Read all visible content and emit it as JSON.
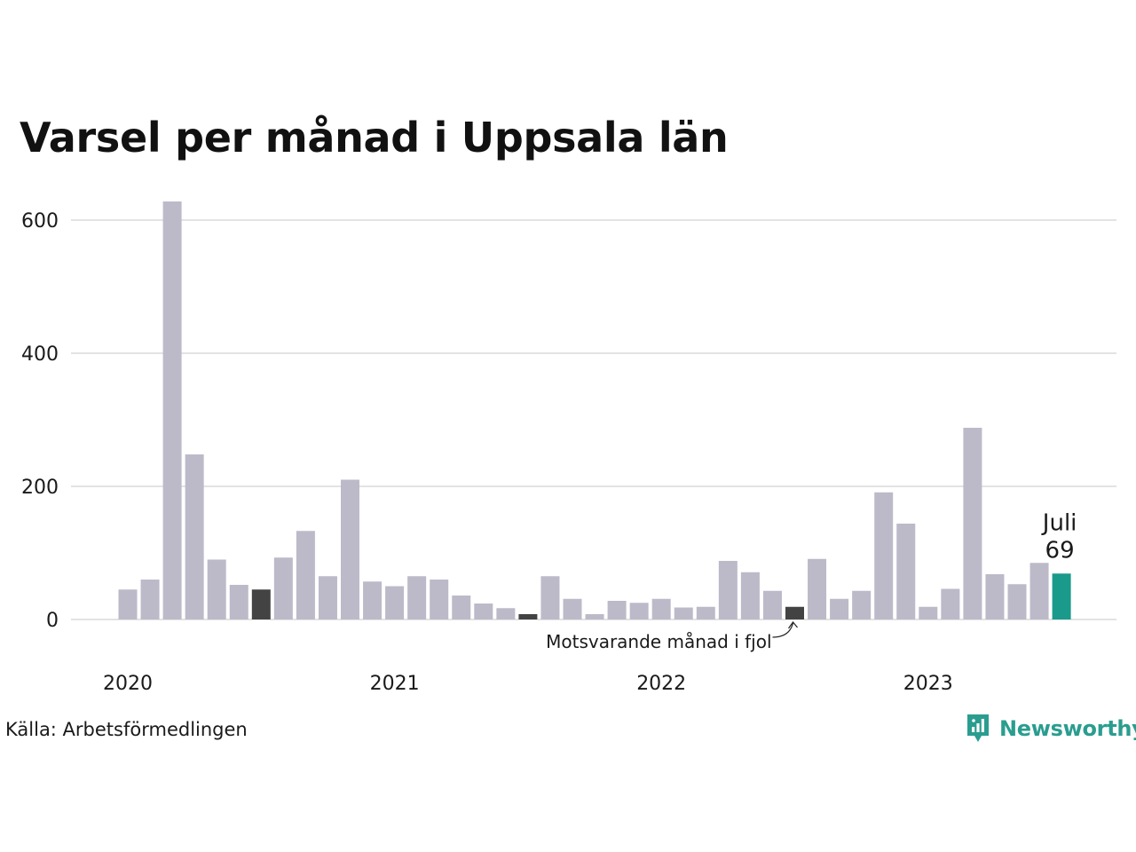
{
  "colors": {
    "bar": "#bcbac9",
    "same_month_last_year": "#434343",
    "current": "#1a9a8b",
    "grid": "#e3e3e3",
    "brand": "#2a9d8f"
  },
  "source": "Källa: Arbetsförmedlingen",
  "brand": {
    "name": "Newsworthy",
    "icon": "bar-chart-speech-bubble-icon"
  },
  "chart_data": {
    "type": "bar",
    "title": "Varsel per månad i Uppsala län",
    "xlabel": "",
    "ylabel": "",
    "ylim": [
      0,
      640
    ],
    "yticks": [
      0,
      200,
      400,
      600
    ],
    "ytick_labels": [
      "0",
      "200",
      "400",
      "600"
    ],
    "x_range": [
      "2020-01",
      "2023-07"
    ],
    "year_labels": [
      {
        "label": "2020",
        "month": "2020-01"
      },
      {
        "label": "2021",
        "month": "2021-01"
      },
      {
        "label": "2022",
        "month": "2022-01"
      },
      {
        "label": "2023",
        "month": "2023-01"
      }
    ],
    "grid": true,
    "months": [
      "2020-01",
      "2020-02",
      "2020-03",
      "2020-04",
      "2020-05",
      "2020-06",
      "2020-07",
      "2020-08",
      "2020-09",
      "2020-10",
      "2020-11",
      "2020-12",
      "2021-01",
      "2021-02",
      "2021-03",
      "2021-04",
      "2021-05",
      "2021-06",
      "2021-07",
      "2021-08",
      "2021-09",
      "2021-10",
      "2021-11",
      "2021-12",
      "2022-01",
      "2022-02",
      "2022-03",
      "2022-04",
      "2022-05",
      "2022-06",
      "2022-07",
      "2022-08",
      "2022-09",
      "2022-10",
      "2022-11",
      "2022-12",
      "2023-01",
      "2023-02",
      "2023-03",
      "2023-04",
      "2023-05",
      "2023-06",
      "2023-07"
    ],
    "values": [
      45,
      60,
      628,
      248,
      90,
      52,
      45,
      93,
      133,
      65,
      210,
      57,
      50,
      65,
      60,
      36,
      24,
      17,
      8,
      65,
      31,
      8,
      28,
      25,
      31,
      18,
      19,
      88,
      71,
      43,
      19,
      91,
      31,
      43,
      191,
      144,
      19,
      46,
      288,
      68,
      53,
      85,
      69
    ],
    "highlight_same_month": [
      "2020-07",
      "2021-07",
      "2022-07"
    ],
    "current": {
      "month": "2023-07",
      "label": "Juli",
      "value": 69
    },
    "annotation": {
      "text": "Motsvarande månad i fjol",
      "target": "2022-07"
    }
  }
}
